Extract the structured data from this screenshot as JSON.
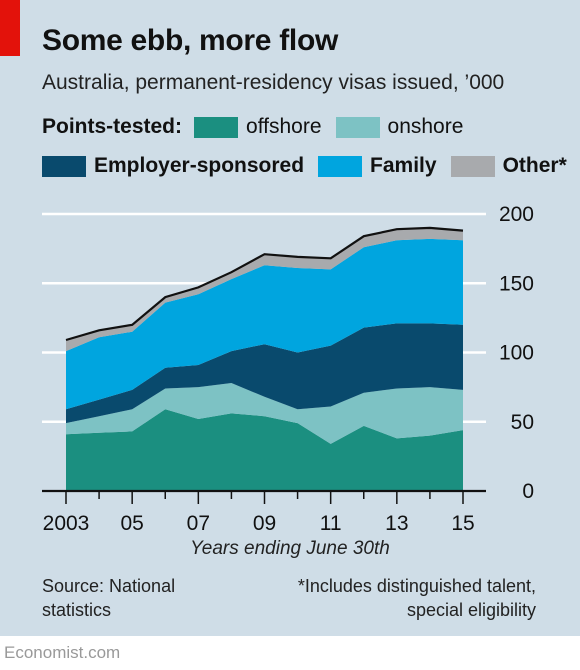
{
  "header": {
    "title": "Some ebb, more flow",
    "subtitle": "Australia, permanent-residency visas issued, ’000"
  },
  "legend": {
    "points_tested_heading": "Points-tested:",
    "items": [
      {
        "label": "offshore",
        "color": "#1b8f80"
      },
      {
        "label": "onshore",
        "color": "#7dc2c4"
      },
      {
        "label": "Employer-sponsored",
        "color": "#094a6d"
      },
      {
        "label": "Family",
        "color": "#00a5df"
      },
      {
        "label": "Other*",
        "color": "#a8aaad"
      }
    ]
  },
  "chart_data": {
    "type": "area",
    "stacked": true,
    "x": [
      2003,
      2004,
      2005,
      2006,
      2007,
      2008,
      2009,
      2010,
      2011,
      2012,
      2013,
      2014,
      2015
    ],
    "x_tick_labels": [
      "2003",
      "05",
      "07",
      "09",
      "11",
      "13",
      "15"
    ],
    "x_tick_values": [
      2003,
      2005,
      2007,
      2009,
      2011,
      2013,
      2015
    ],
    "xlabel": "Years ending June 30th",
    "ylim": [
      0,
      200
    ],
    "y_ticks": [
      0,
      50,
      100,
      150,
      200
    ],
    "grid": true,
    "y_axis_side": "right",
    "series": [
      {
        "name": "offshore",
        "color": "#1b8f80",
        "values": [
          41,
          42,
          43,
          59,
          52,
          56,
          54,
          49,
          34,
          47,
          38,
          40,
          44
        ]
      },
      {
        "name": "onshore",
        "color": "#7dc2c4",
        "values": [
          8,
          12,
          16,
          15,
          23,
          22,
          14,
          10,
          27,
          24,
          36,
          35,
          29
        ]
      },
      {
        "name": "Employer-sponsored",
        "color": "#094a6d",
        "values": [
          10,
          12,
          14,
          15,
          16,
          23,
          38,
          41,
          44,
          47,
          47,
          46,
          47
        ]
      },
      {
        "name": "Family",
        "color": "#00a5df",
        "values": [
          42,
          45,
          42,
          47,
          51,
          52,
          57,
          61,
          55,
          58,
          60,
          61,
          61
        ]
      },
      {
        "name": "Other*",
        "color": "#a8aaad",
        "values": [
          8,
          5,
          5,
          4,
          5,
          5,
          8,
          8,
          8,
          8,
          8,
          8,
          7
        ]
      }
    ]
  },
  "footer": {
    "source_line1": "Source: National",
    "source_line2": "statistics",
    "footnote_line1": "*Includes distinguished talent,",
    "footnote_line2": "special eligibility",
    "brand": "Economist.com"
  }
}
